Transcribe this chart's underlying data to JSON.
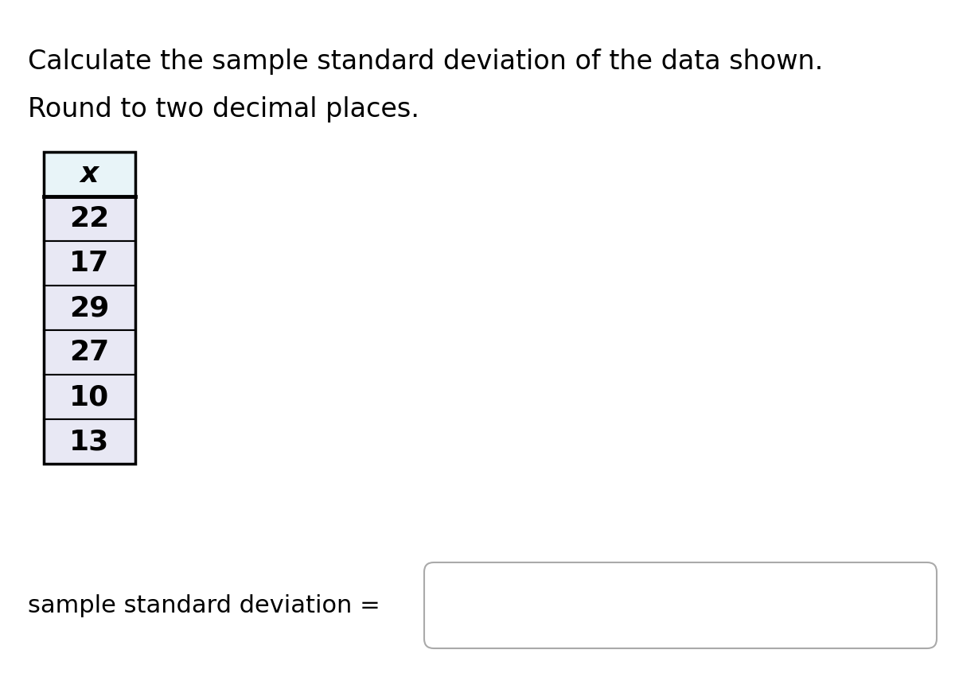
{
  "title_line1": "Calculate the sample standard deviation of the data shown.",
  "title_line2": "Round to two decimal places.",
  "header": "x",
  "values": [
    "22",
    "17",
    "29",
    "27",
    "10",
    "13"
  ],
  "header_bg": "#e8f4f8",
  "cell_bg": "#e8e8f4",
  "bottom_label": "sample standard deviation =",
  "background_color": "#ffffff",
  "title_fontsize": 24,
  "cell_fontsize": 26,
  "label_fontsize": 22,
  "border_color": "#000000",
  "answer_box_color": "#aaaaaa"
}
